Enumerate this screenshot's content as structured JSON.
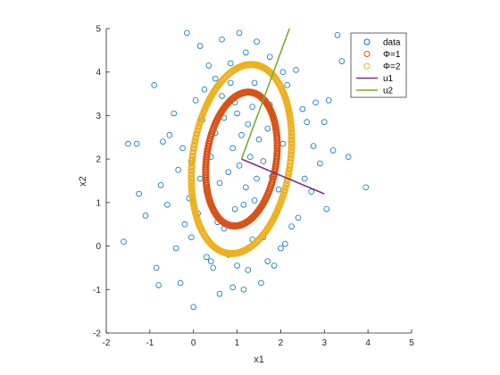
{
  "chart_data": {
    "type": "scatter",
    "xlabel": "x1",
    "ylabel": "x2",
    "xlim": [
      -2,
      5
    ],
    "ylim": [
      -2,
      5
    ],
    "xticks": [
      "-2",
      "-1",
      "0",
      "1",
      "2",
      "3",
      "4",
      "5"
    ],
    "yticks": [
      "-2",
      "-1",
      "0",
      "1",
      "2",
      "3",
      "4",
      "5"
    ],
    "grid": false,
    "legend_position": "top-right",
    "center": [
      1.1,
      2.0
    ],
    "series": [
      {
        "name": "data",
        "kind": "scatter",
        "color": "#0072BD",
        "points": [
          [
            -1.6,
            0.1
          ],
          [
            -1.5,
            2.35
          ],
          [
            -1.3,
            2.35
          ],
          [
            -1.25,
            1.2
          ],
          [
            -1.1,
            0.7
          ],
          [
            -0.9,
            3.7
          ],
          [
            -0.85,
            -0.5
          ],
          [
            -0.8,
            -0.9
          ],
          [
            -0.75,
            1.4
          ],
          [
            -0.7,
            2.4
          ],
          [
            -0.6,
            0.95
          ],
          [
            -0.55,
            2.55
          ],
          [
            -0.45,
            3.05
          ],
          [
            -0.4,
            -0.05
          ],
          [
            -0.35,
            1.75
          ],
          [
            -0.3,
            -0.85
          ],
          [
            -0.25,
            2.25
          ],
          [
            -0.2,
            0.5
          ],
          [
            -0.15,
            4.9
          ],
          [
            -0.1,
            1.1
          ],
          [
            -0.05,
            0.2
          ],
          [
            0,
            -1.4
          ],
          [
            0.05,
            3.35
          ],
          [
            0.1,
            0.75
          ],
          [
            0.15,
            4.6
          ],
          [
            0.2,
            2.9
          ],
          [
            0.25,
            3.6
          ],
          [
            0.3,
            -0.25
          ],
          [
            0.35,
            4.15
          ],
          [
            0.4,
            -0.35
          ],
          [
            0.45,
            -0.5
          ],
          [
            0.5,
            3.85
          ],
          [
            0.55,
            0.55
          ],
          [
            0.6,
            -1.1
          ],
          [
            0.65,
            4.75
          ],
          [
            0.7,
            0.4
          ],
          [
            0.8,
            -0.2
          ],
          [
            0.85,
            4.2
          ],
          [
            0.9,
            -0.95
          ],
          [
            0.95,
            3.3
          ],
          [
            1.0,
            -0.45
          ],
          [
            1.05,
            4.9
          ],
          [
            1.15,
            -1.0
          ],
          [
            1.2,
            4.45
          ],
          [
            1.25,
            -0.55
          ],
          [
            1.35,
            0.15
          ],
          [
            1.45,
            4.7
          ],
          [
            1.55,
            -0.85
          ],
          [
            1.6,
            0.2
          ],
          [
            1.7,
            -0.35
          ],
          [
            1.75,
            4.35
          ],
          [
            1.85,
            -0.45
          ],
          [
            1.9,
            0.75
          ],
          [
            2.0,
            -0.05
          ],
          [
            2.05,
            4.0
          ],
          [
            2.1,
            0.05
          ],
          [
            2.15,
            3.7
          ],
          [
            2.25,
            0.45
          ],
          [
            2.35,
            4.05
          ],
          [
            2.4,
            0.65
          ],
          [
            2.5,
            3.15
          ],
          [
            2.55,
            1.55
          ],
          [
            2.6,
            2.85
          ],
          [
            2.7,
            1.25
          ],
          [
            2.75,
            2.3
          ],
          [
            2.8,
            3.3
          ],
          [
            2.9,
            1.9
          ],
          [
            3.0,
            2.85
          ],
          [
            3.05,
            0.85
          ],
          [
            3.1,
            3.35
          ],
          [
            3.2,
            2.2
          ],
          [
            3.3,
            4.85
          ],
          [
            3.4,
            4.25
          ],
          [
            3.55,
            2.05
          ],
          [
            3.95,
            1.35
          ],
          [
            0.5,
            2.6
          ],
          [
            0.6,
            1.45
          ],
          [
            0.7,
            2.95
          ],
          [
            0.8,
            1.7
          ],
          [
            0.9,
            2.25
          ],
          [
            1.0,
            3.05
          ],
          [
            1.05,
            1.85
          ],
          [
            1.1,
            2.55
          ],
          [
            1.2,
            1.35
          ],
          [
            1.25,
            2.8
          ],
          [
            1.3,
            2.05
          ],
          [
            1.35,
            3.2
          ],
          [
            1.45,
            1.55
          ],
          [
            1.5,
            2.45
          ],
          [
            1.6,
            1.95
          ],
          [
            1.7,
            2.7
          ],
          [
            1.8,
            1.6
          ],
          [
            0.95,
            0.85
          ],
          [
            1.15,
            0.95
          ],
          [
            1.4,
            1.05
          ],
          [
            0.4,
            2.05
          ],
          [
            0.65,
            3.45
          ],
          [
            1.75,
            3.25
          ],
          [
            0.3,
            1.25
          ],
          [
            -0.05,
            1.95
          ],
          [
            0.15,
            1.55
          ],
          [
            2.05,
            2.35
          ],
          [
            1.95,
            1.3
          ],
          [
            0.85,
            3.75
          ],
          [
            1.4,
            3.75
          ]
        ]
      },
      {
        "name": "Φ=1",
        "kind": "ellipse",
        "color": "#D95319",
        "scale": 1,
        "semi_axes": [
          0.8,
          1.55
        ],
        "rotation_deg": 8
      },
      {
        "name": "Φ=2",
        "kind": "ellipse",
        "color": "#EDB120",
        "scale": 2,
        "semi_axes": [
          1.12,
          2.19
        ],
        "rotation_deg": 8
      },
      {
        "name": "u1",
        "kind": "line",
        "color": "#7E2F8E",
        "from": [
          1.1,
          2.0
        ],
        "to": [
          3.0,
          1.2
        ]
      },
      {
        "name": "u2",
        "kind": "line",
        "color": "#77AC30",
        "from": [
          1.1,
          2.0
        ],
        "to": [
          2.2,
          5.0
        ]
      }
    ]
  }
}
